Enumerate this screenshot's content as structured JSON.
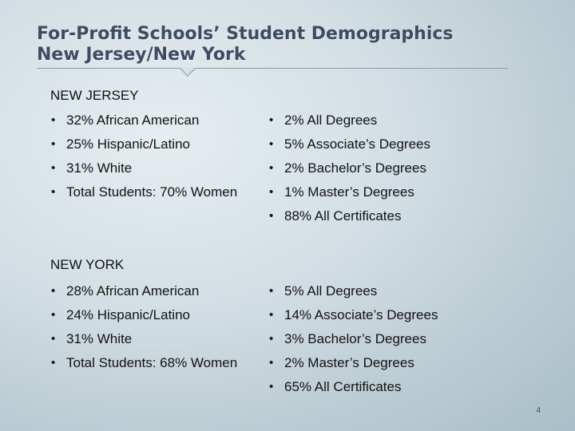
{
  "title": {
    "line1": "For-Profit Schools’ Student Demographics",
    "line2": "New Jersey/New York"
  },
  "sections": [
    {
      "heading": "NEW JERSEY",
      "left": [
        "32% African American",
        "25% Hispanic/Latino",
        "31% White",
        "Total Students:  70% Women"
      ],
      "right": [
        "2% All Degrees",
        "5% Associate’s Degrees",
        "2% Bachelor’s Degrees",
        "1% Master’s Degrees",
        "88% All Certificates"
      ]
    },
    {
      "heading": "NEW YORK",
      "left": [
        "28% African American",
        "24% Hispanic/Latino",
        "31% White",
        "Total Students:  68% Women"
      ],
      "right": [
        "5% All Degrees",
        "14% Associate’s Degrees",
        "3% Bachelor’s Degrees",
        "2% Master’s Degrees",
        "65% All Certificates"
      ]
    }
  ],
  "page_number": "4",
  "colors": {
    "title": "#3d4c62",
    "background": "#d3dfe4",
    "page_number": "#2a4d7a"
  }
}
